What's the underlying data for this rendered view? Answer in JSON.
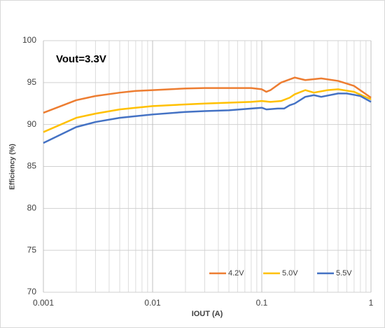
{
  "chart_data": {
    "type": "line",
    "annotation": "Vout=3.3V",
    "xlabel": "IOUT (A)",
    "ylabel": "Efficiency (%)",
    "xscale": "log",
    "xlim": [
      0.001,
      1
    ],
    "xticks": [
      0.001,
      0.01,
      0.1,
      1
    ],
    "ylim": [
      70,
      100
    ],
    "yticks": [
      70,
      75,
      80,
      85,
      90,
      95,
      100
    ],
    "grid": true,
    "minor_grid": true,
    "legend": "lower right",
    "series": [
      {
        "name": "4.2V",
        "color": "#ED7D31",
        "x": [
          0.001,
          0.002,
          0.003,
          0.005,
          0.007,
          0.01,
          0.02,
          0.03,
          0.05,
          0.08,
          0.1,
          0.11,
          0.12,
          0.15,
          0.2,
          0.25,
          0.35,
          0.5,
          0.7,
          1
        ],
        "values": [
          91.4,
          92.9,
          93.4,
          93.8,
          94.0,
          94.1,
          94.3,
          94.35,
          94.35,
          94.35,
          94.2,
          93.9,
          94.1,
          95.0,
          95.6,
          95.3,
          95.5,
          95.2,
          94.6,
          93.2
        ]
      },
      {
        "name": "5.0V",
        "color": "#FFC000",
        "x": [
          0.001,
          0.002,
          0.003,
          0.005,
          0.007,
          0.01,
          0.02,
          0.03,
          0.05,
          0.08,
          0.1,
          0.12,
          0.15,
          0.18,
          0.2,
          0.25,
          0.3,
          0.4,
          0.5,
          0.7,
          1
        ],
        "values": [
          89.1,
          90.8,
          91.3,
          91.8,
          92.0,
          92.2,
          92.4,
          92.5,
          92.6,
          92.7,
          92.8,
          92.7,
          92.8,
          93.2,
          93.6,
          94.1,
          93.8,
          94.1,
          94.2,
          93.9,
          93.0
        ]
      },
      {
        "name": "5.5V",
        "color": "#4472C4",
        "x": [
          0.001,
          0.002,
          0.003,
          0.005,
          0.007,
          0.01,
          0.02,
          0.03,
          0.05,
          0.08,
          0.1,
          0.11,
          0.14,
          0.16,
          0.18,
          0.2,
          0.25,
          0.3,
          0.35,
          0.5,
          0.6,
          0.8,
          1
        ],
        "values": [
          87.8,
          89.7,
          90.3,
          90.8,
          91.0,
          91.2,
          91.5,
          91.6,
          91.7,
          91.9,
          92.0,
          91.8,
          91.9,
          91.9,
          92.3,
          92.5,
          93.3,
          93.5,
          93.3,
          93.7,
          93.7,
          93.4,
          92.7
        ]
      }
    ]
  }
}
